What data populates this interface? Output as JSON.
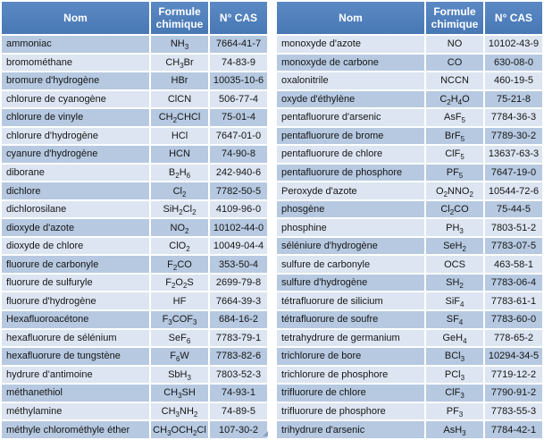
{
  "columns": {
    "nom": "Nom",
    "formule": "Formule chimique",
    "cas": "N° CAS"
  },
  "style": {
    "header_bg_top": "#5b89c4",
    "header_bg_bottom": "#4878b4",
    "header_text": "#ffffff",
    "row_dark": "#b6c9e1",
    "row_light": "#dce5f1",
    "grid": "#ffffff",
    "body_text": "#161616"
  },
  "tables": [
    {
      "dark_rows": [
        1,
        3,
        5,
        7,
        9,
        11,
        13,
        16,
        18,
        20,
        22
      ],
      "rows": [
        {
          "nom": "ammoniac",
          "formule": "NH3",
          "cas": "7664-41-7"
        },
        {
          "nom": "bromométhane",
          "formule": "CH3Br",
          "cas": "74-83-9"
        },
        {
          "nom": "bromure d'hydrogène",
          "formule": "HBr",
          "cas": "10035-10-6"
        },
        {
          "nom": "chlorure de cyanogène",
          "formule": "ClCN",
          "cas": "506-77-4"
        },
        {
          "nom": "chlorure de vinyle",
          "formule": "CH2CHCl",
          "cas": "75-01-4"
        },
        {
          "nom": "chlorure d'hydrogène",
          "formule": "HCl",
          "cas": "7647-01-0"
        },
        {
          "nom": "cyanure d'hydrogène",
          "formule": "HCN",
          "cas": "74-90-8"
        },
        {
          "nom": "diborane",
          "formule": "B2H6",
          "cas": "242-940-6"
        },
        {
          "nom": "dichlore",
          "formule": "Cl2",
          "cas": "7782-50-5"
        },
        {
          "nom": "dichlorosilane",
          "formule": "SiH2Cl2",
          "cas": "4109-96-0"
        },
        {
          "nom": "dioxyde d'azote",
          "formule": "NO2",
          "cas": "10102-44-0"
        },
        {
          "nom": "dioxyde de chlore",
          "formule": "ClO2",
          "cas": "10049-04-4"
        },
        {
          "nom": "fluorure de carbonyle",
          "formule": "F2CO",
          "cas": "353-50-4"
        },
        {
          "nom": "fluorure de sulfuryle",
          "formule": "F2O2S",
          "cas": "2699-79-8"
        },
        {
          "nom": "fluorure d'hydrogène",
          "formule": "HF",
          "cas": "7664-39-3"
        },
        {
          "nom": "Hexafluoroacétone",
          "formule": "F3COF3",
          "cas": "684-16-2"
        },
        {
          "nom": "hexafluorure de sélénium",
          "formule": "SeF6",
          "cas": "7783-79-1"
        },
        {
          "nom": "hexafluorure de tungstène",
          "formule": "F6W",
          "cas": "7783-82-6"
        },
        {
          "nom": "hydrure d’antimoine",
          "formule": "SbH3",
          "cas": "7803-52-3"
        },
        {
          "nom": "méthanethiol",
          "formule": "CH3SH",
          "cas": "74-93-1"
        },
        {
          "nom": "méthylamine",
          "formule": "CH3NH2",
          "cas": "74-89-5"
        },
        {
          "nom": "méthyle chlorométhyle éther",
          "formule": "CH3OCH2Cl",
          "cas": "107-30-2"
        }
      ]
    },
    {
      "dark_rows": [
        2,
        4,
        6,
        8,
        10,
        12,
        14,
        16,
        18,
        20,
        22
      ],
      "rows": [
        {
          "nom": "monoxyde d'azote",
          "formule": "NO",
          "cas": "10102-43-9"
        },
        {
          "nom": "monoxyde de carbone",
          "formule": "CO",
          "cas": "630-08-0"
        },
        {
          "nom": "oxalonitrile",
          "formule": "NCCN",
          "cas": "460-19-5"
        },
        {
          "nom": "oxyde d'éthylène",
          "formule": "C2H4O",
          "cas": "75-21-8"
        },
        {
          "nom": "pentafluorure d'arsenic",
          "formule": "AsF5",
          "cas": "7784-36-3"
        },
        {
          "nom": "pentafluorure de brome",
          "formule": "BrF5",
          "cas": "7789-30-2"
        },
        {
          "nom": "pentafluorure de chlore",
          "formule": "ClF5",
          "cas": "13637-63-3"
        },
        {
          "nom": "pentafluorure de phosphore",
          "formule": "PF5",
          "cas": "7647-19-0"
        },
        {
          "nom": "Peroxyde d'azote",
          "formule": "O2NNO2",
          "cas": "10544-72-6"
        },
        {
          "nom": "phosgène",
          "formule": "Cl2CO",
          "cas": "75-44-5"
        },
        {
          "nom": "phosphine",
          "formule": "PH3",
          "cas": "7803-51-2"
        },
        {
          "nom": "séléniure d'hydrogène",
          "formule": "SeH2",
          "cas": "7783-07-5"
        },
        {
          "nom": "sulfure de carbonyle",
          "formule": "OCS",
          "cas": "463-58-1"
        },
        {
          "nom": "sulfure d'hydrogène",
          "formule": "SH2",
          "cas": "7783-06-4"
        },
        {
          "nom": "tétrafluorure de silicium",
          "formule": "SiF4",
          "cas": "7783-61-1"
        },
        {
          "nom": "tétrafluorure de soufre",
          "formule": "SF4",
          "cas": "7783-60-0"
        },
        {
          "nom": "tetrahydrure de germanium",
          "formule": "GeH4",
          "cas": "778-65-2"
        },
        {
          "nom": "trichlorure de bore",
          "formule": "BCl3",
          "cas": "10294-34-5"
        },
        {
          "nom": "trichlorure de phosphore",
          "formule": "PCl3",
          "cas": "7719-12-2"
        },
        {
          "nom": "trifluorure de chlore",
          "formule": "ClF3",
          "cas": "7790-91-2"
        },
        {
          "nom": "trifluorure de phosphore",
          "formule": "PF3",
          "cas": "7783-55-3"
        },
        {
          "nom": "trihydrure d'arsenic",
          "formule": "AsH3",
          "cas": "7784-42-1"
        }
      ]
    }
  ]
}
